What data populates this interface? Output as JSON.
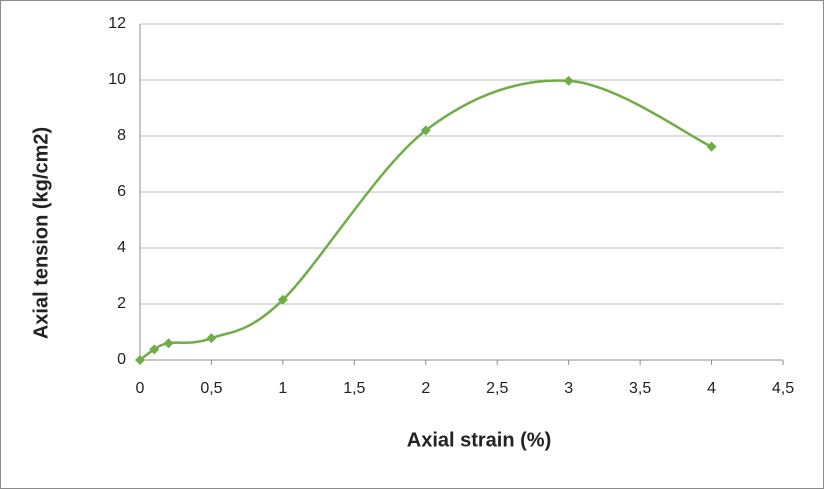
{
  "chart_data": {
    "type": "line",
    "x_label": "Axial strain (%)",
    "y_label": "Axial tension (kg/cm2)",
    "x": [
      0,
      0.1,
      0.2,
      0.5,
      1,
      2,
      3,
      4
    ],
    "series": [
      {
        "color": "#70ad47",
        "values": [
          0,
          0.38,
          0.6,
          0.78,
          2.15,
          8.2,
          9.97,
          7.62
        ]
      }
    ],
    "smooth": true,
    "marker": "diamond",
    "xlim": [
      0,
      4.5
    ],
    "xticks": [
      0,
      {
        "value": 0.5,
        "label": "0,5"
      },
      1,
      {
        "value": 1.5,
        "label": "1,5"
      },
      2,
      {
        "value": 2.5,
        "label": "2,5"
      },
      3,
      {
        "value": 3.5,
        "label": "3,5"
      },
      4,
      {
        "value": 4.5,
        "label": "4,5"
      }
    ],
    "ylim": [
      0,
      12
    ],
    "yticks": [
      0,
      2,
      4,
      6,
      8,
      10,
      12
    ],
    "grid": true
  }
}
